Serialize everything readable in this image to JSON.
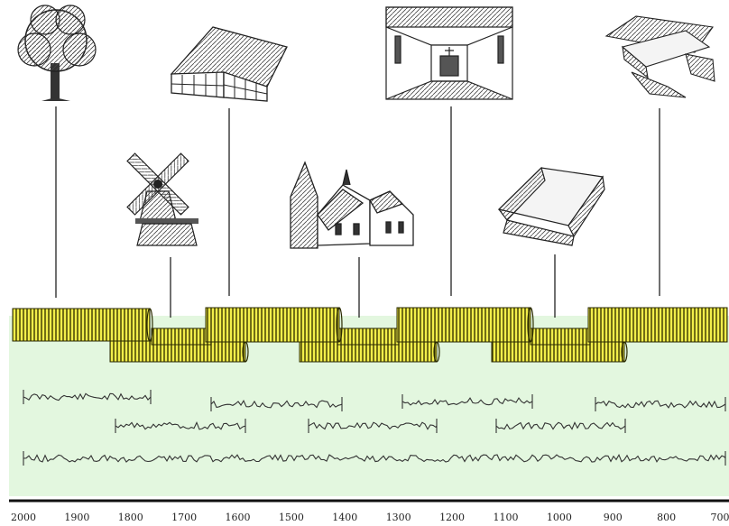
{
  "diagram": {
    "illustrations": [
      {
        "id": "tree",
        "icon": "tree-icon"
      },
      {
        "id": "windmill",
        "icon": "windmill-icon"
      },
      {
        "id": "farmhouse",
        "icon": "half-timbered-house-icon"
      },
      {
        "id": "church",
        "icon": "village-church-icon"
      },
      {
        "id": "church-interior",
        "icon": "church-interior-icon"
      },
      {
        "id": "well",
        "icon": "wooden-well-icon"
      },
      {
        "id": "excavation",
        "icon": "excavation-site-icon"
      }
    ],
    "timeline": {
      "axis_from": 2000,
      "axis_to": 700,
      "tick_labels": [
        "2000",
        "1900",
        "1800",
        "1700",
        "1600",
        "1500",
        "1400",
        "1300",
        "1200",
        "1100",
        "1000",
        "900",
        "800",
        "700"
      ]
    },
    "colors": {
      "log_fill": "#f2ee4a",
      "log_ring": "#2a2a00",
      "band_bg": "#e3f7df",
      "line": "#222222"
    }
  }
}
